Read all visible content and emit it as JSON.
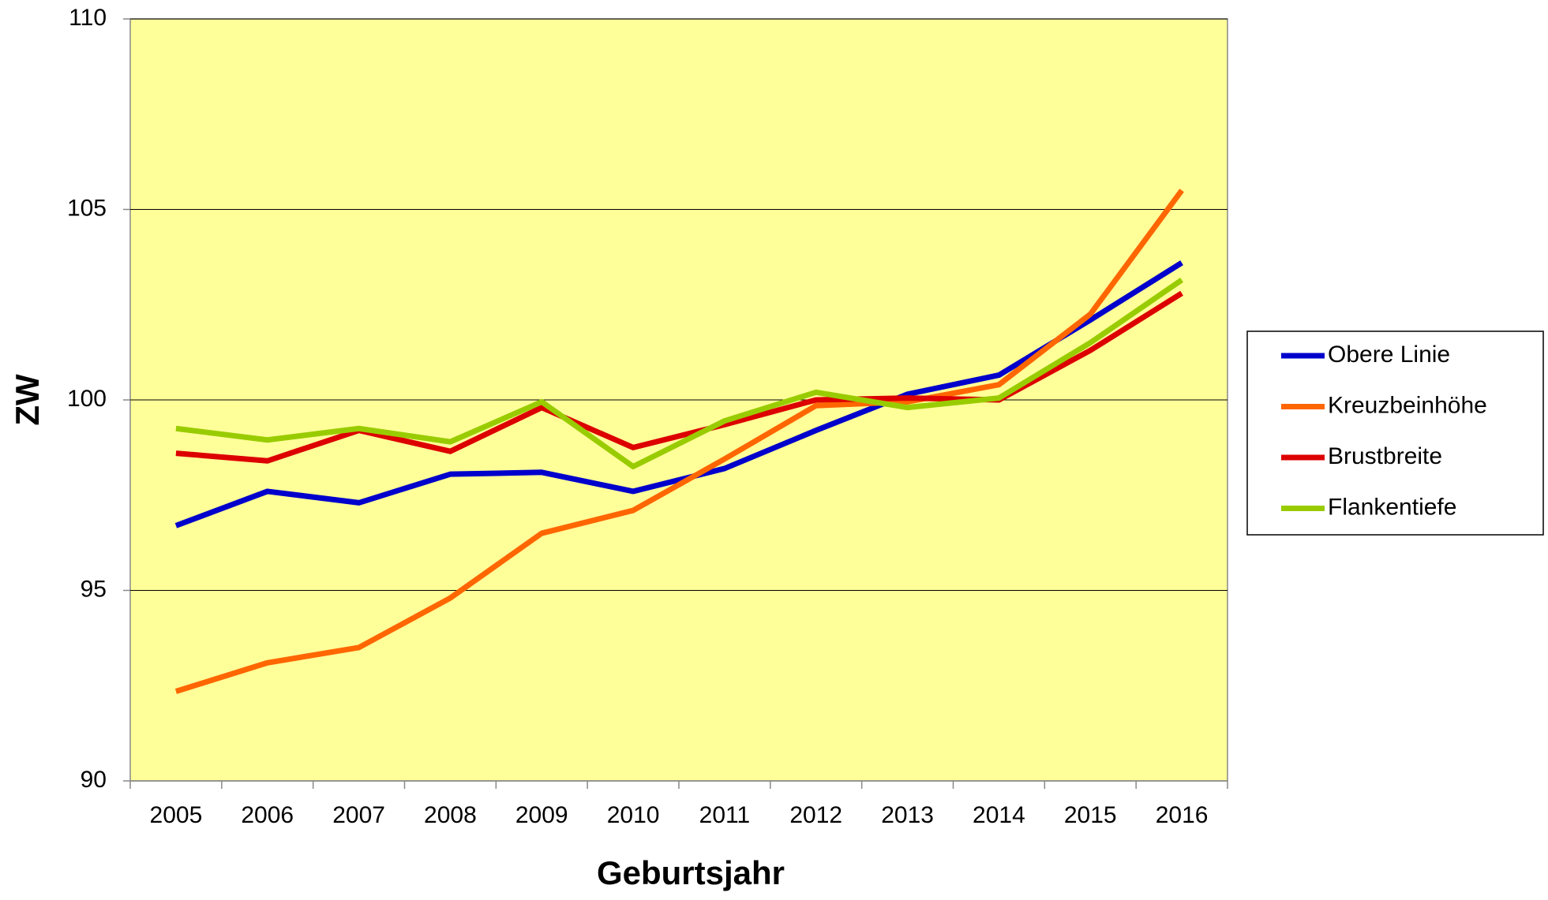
{
  "chart_data": {
    "type": "line",
    "x_label": "Geburtsjahr",
    "y_label": "ZW",
    "categories": [
      "2005",
      "2006",
      "2007",
      "2008",
      "2009",
      "2010",
      "2011",
      "2012",
      "2013",
      "2014",
      "2015",
      "2016"
    ],
    "series": [
      {
        "name": "Obere Linie",
        "color": "#0000cc",
        "values": [
          96.7,
          97.6,
          97.3,
          98.05,
          98.1,
          97.6,
          98.2,
          99.2,
          100.15,
          100.65,
          102.1,
          103.6
        ]
      },
      {
        "name": "Kreuzbeinhöhe",
        "color": "#ff6600",
        "values": [
          92.35,
          93.1,
          93.5,
          94.8,
          96.5,
          97.1,
          98.45,
          99.85,
          99.95,
          100.4,
          102.25,
          105.5
        ]
      },
      {
        "name": "Brustbreite",
        "color": "#dd0000",
        "values": [
          98.6,
          98.4,
          99.2,
          98.65,
          99.8,
          98.75,
          99.35,
          100.0,
          100.05,
          100.0,
          101.3,
          102.8
        ]
      },
      {
        "name": "Flankentiefe",
        "color": "#99cc00",
        "values": [
          99.25,
          98.95,
          99.25,
          98.9,
          99.95,
          98.25,
          99.45,
          100.2,
          99.8,
          100.05,
          101.5,
          103.15
        ]
      }
    ],
    "ylim": [
      90,
      110
    ],
    "yticks": [
      90,
      95,
      100,
      105,
      110
    ],
    "grid": true,
    "legend": "right",
    "plot_background": "#ffff99"
  }
}
